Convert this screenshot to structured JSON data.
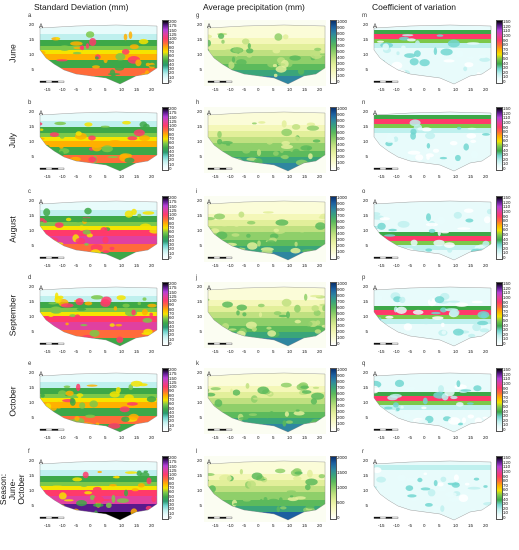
{
  "columns": [
    {
      "title": "Standard Deviation (mm)"
    },
    {
      "title": "Average precipitation (mm)"
    },
    {
      "title": "Coefficient of variation"
    }
  ],
  "rows": [
    {
      "label": "June"
    },
    {
      "label": "July"
    },
    {
      "label": "August"
    },
    {
      "label": "September"
    },
    {
      "label": "October"
    },
    {
      "label": "Season: June-October"
    }
  ],
  "panel_letters": [
    [
      "a",
      "g",
      "m"
    ],
    [
      "b",
      "h",
      "n"
    ],
    [
      "c",
      "i",
      "o"
    ],
    [
      "d",
      "j",
      "p"
    ],
    [
      "e",
      "k",
      "q"
    ],
    [
      "f",
      "l",
      "r"
    ]
  ],
  "x_ticks": [
    "-15",
    "-10",
    "-5",
    "0",
    "5",
    "10",
    "15",
    "20"
  ],
  "y_ticks": [
    "20",
    "15",
    "10",
    "5"
  ],
  "colorbar_ticks": {
    "sd": [
      "200",
      "175",
      "150",
      "125",
      "100",
      "90",
      "80",
      "70",
      "60",
      "50",
      "40",
      "30",
      "20",
      "10",
      "0"
    ],
    "avg": [
      "1000",
      "900",
      "800",
      "700",
      "600",
      "500",
      "400",
      "300",
      "200",
      "100",
      "0"
    ],
    "avg_season": [
      "2000",
      "1500",
      "1000",
      "500",
      "0"
    ],
    "cv": [
      "150",
      "120",
      "110",
      "100",
      "90",
      "80",
      "70",
      "60",
      "50",
      "40",
      "30",
      "20",
      "10",
      "0"
    ]
  },
  "colors": {
    "sd_scale": [
      "#000000",
      "#5a1a8c",
      "#b63fd6",
      "#e040a0",
      "#ff3a6a",
      "#ff6b3a",
      "#ffb000",
      "#f5e400",
      "#7cc84a",
      "#3da848",
      "#2a9a70",
      "#72d6d0",
      "#bff0ee",
      "#e8fbfb",
      "#ffffff"
    ],
    "avg_scale": [
      "#08306b",
      "#1c5fa0",
      "#2e86a0",
      "#3aa57a",
      "#5cba5c",
      "#8fcf6a",
      "#bfe080",
      "#e2ef9a",
      "#f4f7b8",
      "#fbfcd8",
      "#ffffff"
    ],
    "cv_scale": [
      "#000000",
      "#5a1a8c",
      "#b63fd6",
      "#e040a0",
      "#ff3a6a",
      "#ff6b3a",
      "#ffb000",
      "#f5e400",
      "#7cc84a",
      "#3da848",
      "#72d6d0",
      "#bff0ee",
      "#e8fbfb",
      "#ffffff"
    ]
  }
}
